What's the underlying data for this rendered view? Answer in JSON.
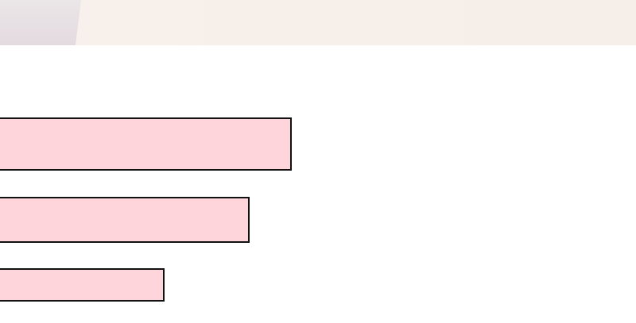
{
  "banner": {
    "colors": {
      "left_panel": "#e6dfe3",
      "background": "#f7efea"
    }
  },
  "blocks": {
    "fill_color": "#ffd5dc",
    "border_color": "#111111",
    "items": [
      {
        "name": "block-1"
      },
      {
        "name": "block-2"
      },
      {
        "name": "block-3"
      }
    ]
  }
}
